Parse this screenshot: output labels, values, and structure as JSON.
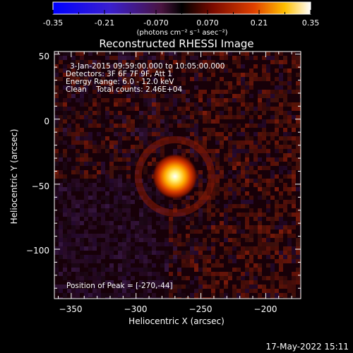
{
  "colorbar": {
    "ticks": [
      "-0.35",
      "-0.21",
      "-0.070",
      "0.070",
      "0.21",
      "0.35"
    ],
    "units": "(photons cm⁻² s⁻¹ asec⁻²)"
  },
  "title": "Reconstructed RHESSI Image",
  "annotations": {
    "time_range": "3-Jan-2015 09:59:00.000 to 10:05:00.000",
    "detectors": "Detectors: 3F 6F 7F 9F, Att 1",
    "energy": "Energy Range: 6.0 - 12.0 keV",
    "method": "Clean    Total counts: 2.46E+04",
    "peak": "Position of Peak = [-270,-44]"
  },
  "axes": {
    "xlabel": "Heliocentric X (arcsec)",
    "ylabel": "Heliocentric Y (arcsec)",
    "xticks": [
      "−350",
      "−300",
      "−250",
      "−200"
    ],
    "yticks": [
      "50",
      "0",
      "−50",
      "−100"
    ]
  },
  "timestamp": "17-May-2022 15:11",
  "chart_data": {
    "type": "heatmap",
    "title": "Reconstructed RHESSI Image",
    "xlabel": "Heliocentric X (arcsec)",
    "ylabel": "Heliocentric Y (arcsec)",
    "xlim": [
      -363,
      -173
    ],
    "ylim": [
      -138,
      52
    ],
    "zlim": [
      -0.35,
      0.35
    ],
    "units": "photons cm^-2 s^-1 asec^-2",
    "colormap": "blue-purple-red-yellow-white",
    "x_ticks": [
      -350,
      -300,
      -250,
      -200
    ],
    "y_ticks": [
      50,
      0,
      -50,
      -100
    ],
    "peak": {
      "x": -270,
      "y": -44
    },
    "source_radius_arcsec": 8
  }
}
